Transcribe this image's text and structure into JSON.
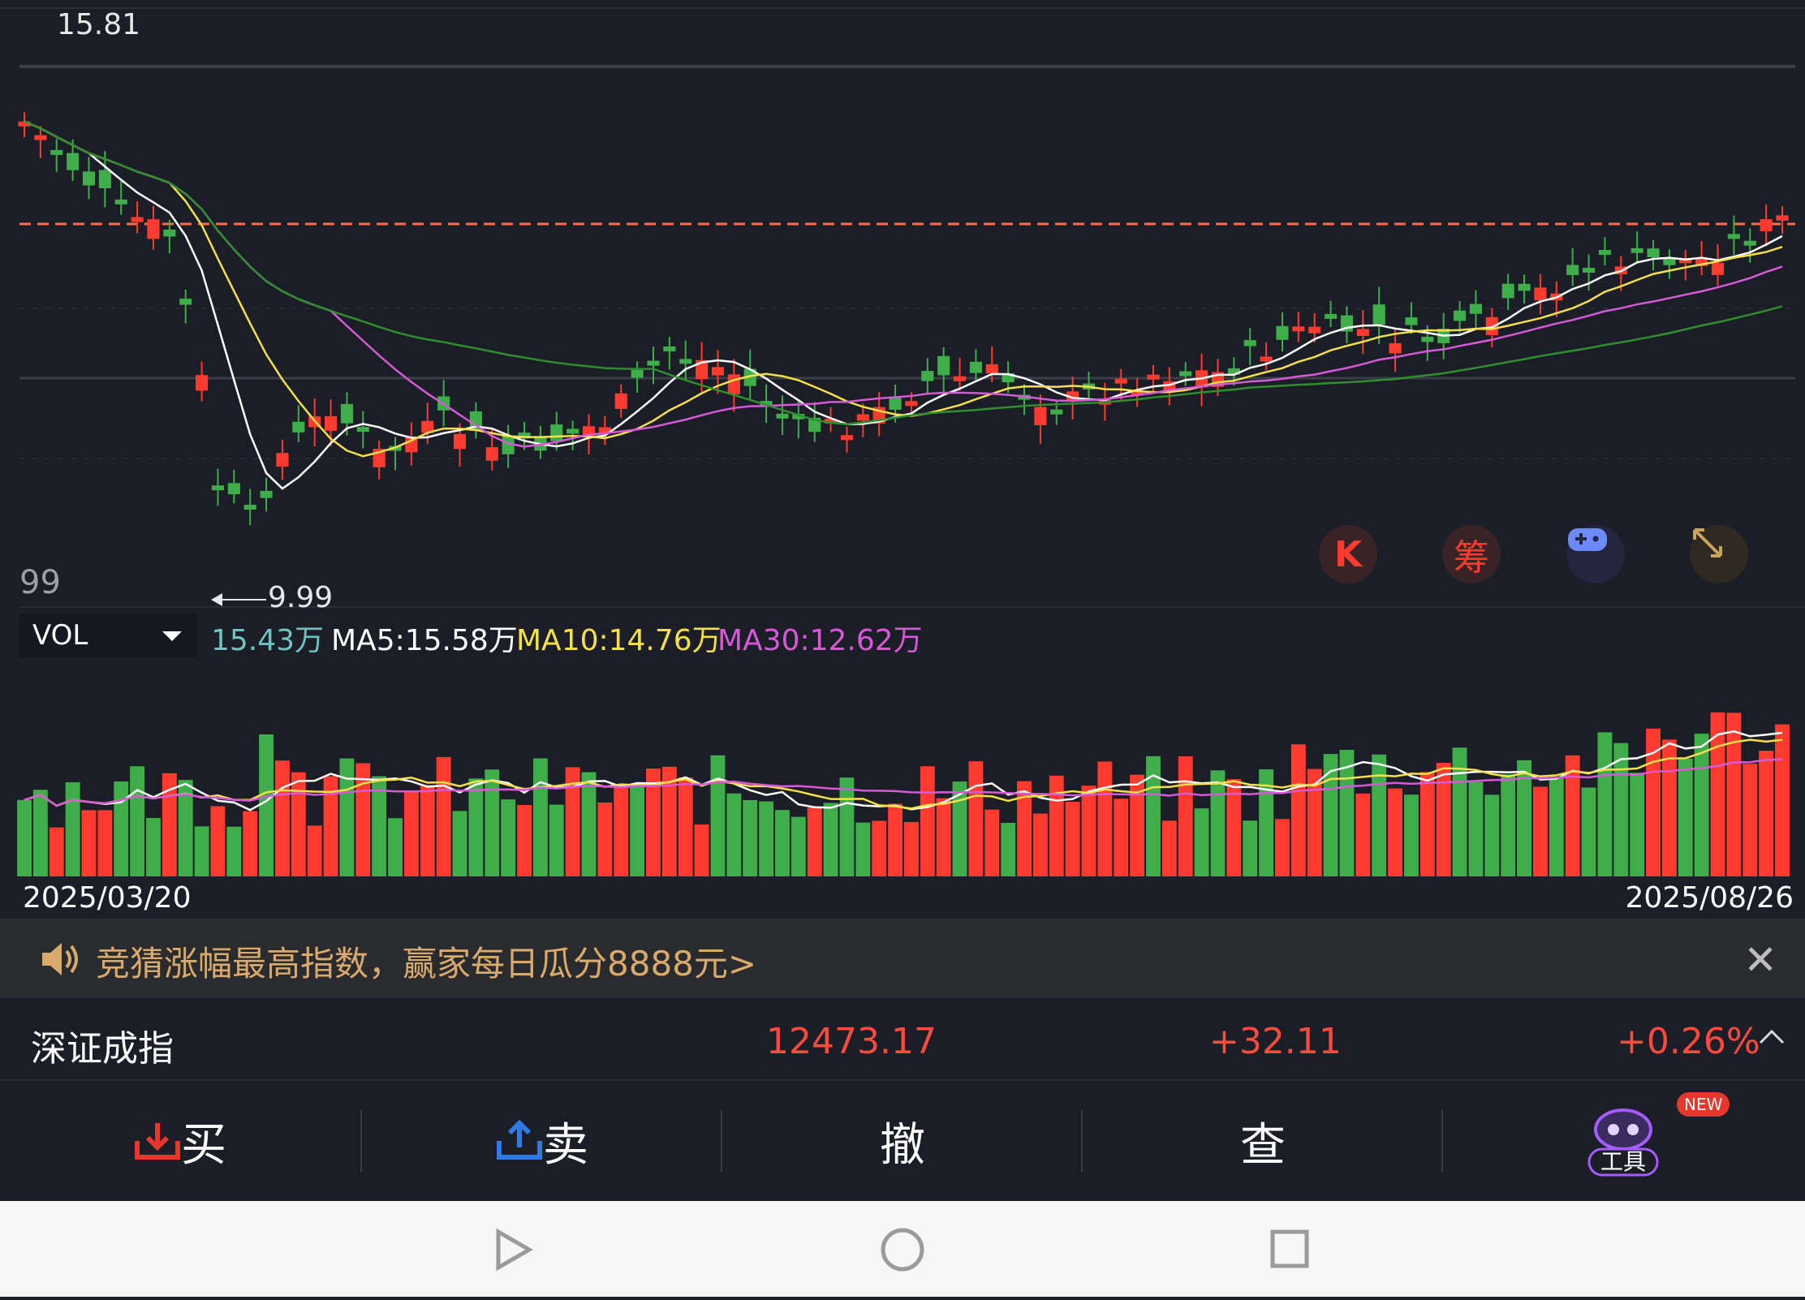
{
  "price_chart": {
    "high_label": "15.81",
    "low_label": "9.99",
    "left_axis_label": "99"
  },
  "tool_buttons": {
    "k_label": "K",
    "chip_label": "筹"
  },
  "volume": {
    "indicator": "VOL",
    "current": "15.43万",
    "ma5": "MA5:15.58万",
    "ma10": "MA10:14.76万",
    "ma30": "MA30:12.62万"
  },
  "dates": {
    "start": "2025/03/20",
    "end": "2025/08/26"
  },
  "banner": {
    "text": "竞猜涨幅最高指数，赢家每日瓜分8888元>"
  },
  "index": {
    "name": "深证成指",
    "value": "12473.17",
    "change": "+32.11",
    "percent": "+0.26%"
  },
  "trade": {
    "buy": "买",
    "sell": "卖",
    "cancel": "撤",
    "query": "查",
    "tools": "工具",
    "new_badge": "NEW"
  },
  "colors": {
    "up": "#ff3b2f",
    "down": "#3fae4a",
    "ma_white": "#ffffff",
    "ma_yellow": "#f5e04a",
    "ma_magenta": "#d65ad8",
    "ma_green": "#2f8f2f"
  },
  "chart_data": {
    "type": "candlestick",
    "x_range": [
      "2025/03/20",
      "2025/08/26"
    ],
    "price_high": 15.81,
    "price_low": 9.99,
    "volume_unit": "万",
    "volume_latest": 15.43,
    "volume_ma5": 15.58,
    "volume_ma10": 14.76,
    "volume_ma30": 12.62
  }
}
